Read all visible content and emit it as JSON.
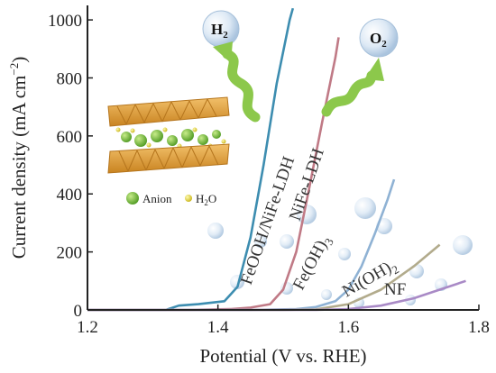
{
  "chart_data": {
    "type": "line",
    "xlabel": "Potential (V vs. RHE)",
    "ylabel": "Current density (mA cm⁻²)",
    "xlim": [
      1.2,
      1.8
    ],
    "ylim": [
      0,
      1050
    ],
    "xticks": [
      "1.2",
      "1.4",
      "1.6",
      "1.8"
    ],
    "yticks": [
      "0",
      "200",
      "400",
      "600",
      "800",
      "1000"
    ],
    "xtick_values": [
      1.2,
      1.4,
      1.6,
      1.8
    ],
    "ytick_values": [
      0,
      200,
      400,
      600,
      800,
      1000
    ],
    "grid": false,
    "series": [
      {
        "name": "FeOOH/NiFe-LDH",
        "color": "#3d8db0",
        "x": [
          1.2,
          1.32,
          1.34,
          1.37,
          1.41,
          1.43,
          1.45,
          1.47,
          1.49,
          1.51,
          1.515
        ],
        "y": [
          0,
          0,
          15,
          20,
          30,
          80,
          250,
          500,
          780,
          1000,
          1040
        ]
      },
      {
        "name": "NiFe-LDH",
        "color": "#c07a86",
        "x": [
          1.2,
          1.35,
          1.42,
          1.45,
          1.48,
          1.5,
          1.52,
          1.54,
          1.56,
          1.58,
          1.585
        ],
        "y": [
          0,
          0,
          3,
          8,
          20,
          70,
          200,
          420,
          650,
          870,
          940
        ]
      },
      {
        "name": "Fe(OH)3",
        "color": "#8fb2d4",
        "x": [
          1.2,
          1.45,
          1.52,
          1.55,
          1.58,
          1.6,
          1.62,
          1.64,
          1.66,
          1.67
        ],
        "y": [
          0,
          0,
          3,
          10,
          30,
          70,
          150,
          260,
          380,
          450
        ]
      },
      {
        "name": "Ni(OH)2",
        "color": "#b2ab8c",
        "x": [
          1.2,
          1.5,
          1.55,
          1.6,
          1.65,
          1.7,
          1.74
        ],
        "y": [
          0,
          0,
          2,
          20,
          70,
          150,
          225
        ]
      },
      {
        "name": "NF",
        "color": "#a98ac6",
        "x": [
          1.2,
          1.55,
          1.6,
          1.65,
          1.7,
          1.74,
          1.78
        ],
        "y": [
          0,
          0,
          3,
          15,
          40,
          70,
          100
        ]
      }
    ],
    "annotations": [
      "H2",
      "O2"
    ],
    "inset_legend": [
      "Anion",
      "H2O"
    ]
  },
  "labels": {
    "feooh": "FeOOH/NiFe-LDH",
    "nife": "NiFe-LDH",
    "feoh_main": "Fe(OH)",
    "feoh_sub": "3",
    "nioh_main": "Ni(OH)",
    "nioh_sub": "2",
    "nf": "NF",
    "h2_main": "H",
    "h2_sub": "2",
    "o2_main": "O",
    "o2_sub": "2",
    "anion": "Anion",
    "water_main": "H",
    "water_sub": "2",
    "water_end": "O",
    "ylabel_main": "Current density (mA cm",
    "ylabel_sup": "−2",
    "ylabel_end": ")"
  },
  "colors": {
    "axis": "#222222",
    "wave": "#8cc84b",
    "slab": "#e6a33a",
    "anion": "#7ec23f",
    "water": "#e8d83a",
    "bubble": "#c7ddf0"
  }
}
